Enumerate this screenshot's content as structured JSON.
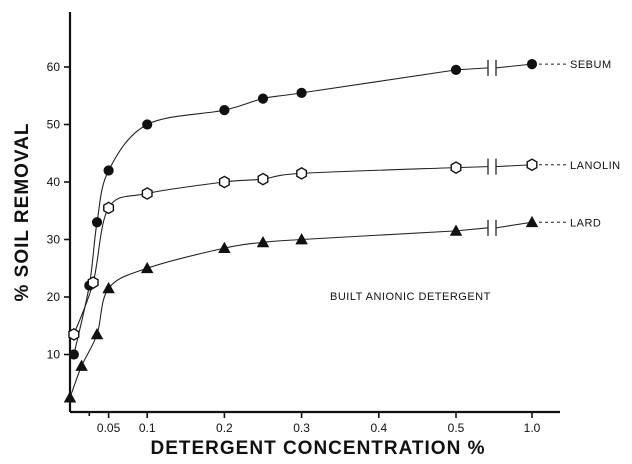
{
  "chart_data": {
    "type": "scatter",
    "title": "",
    "xlabel": "DETERGENT CONCENTRATION %",
    "ylabel": "% SOIL REMOVAL",
    "ylim": [
      0,
      70
    ],
    "y_ticks": [
      10,
      20,
      30,
      40,
      50,
      60
    ],
    "x_tick_labels": [
      "0.05",
      "0.1",
      "0.2",
      "0.3",
      "0.4",
      "0.5",
      "1.0"
    ],
    "x_scale_note": "linear 0 to 0.5, axis break, then 1.0",
    "annotation": "BUILT ANIONIC DETERGENT",
    "series": [
      {
        "name": "SEBUM",
        "marker": "filled-circle",
        "points": [
          [
            0.005,
            10
          ],
          [
            0.025,
            22
          ],
          [
            0.035,
            33
          ],
          [
            0.05,
            42
          ],
          [
            0.1,
            50
          ],
          [
            0.2,
            52.5
          ],
          [
            0.25,
            54.5
          ],
          [
            0.3,
            55.5
          ],
          [
            0.5,
            59.5
          ],
          [
            1.0,
            60.5
          ]
        ]
      },
      {
        "name": "LANOLIN",
        "marker": "open-hexagon",
        "points": [
          [
            0.005,
            13.5
          ],
          [
            0.03,
            22.5
          ],
          [
            0.05,
            35.5
          ],
          [
            0.1,
            38
          ],
          [
            0.2,
            40
          ],
          [
            0.25,
            40.5
          ],
          [
            0.3,
            41.5
          ],
          [
            0.5,
            42.5
          ],
          [
            1.0,
            43
          ]
        ]
      },
      {
        "name": "LARD",
        "marker": "filled-triangle",
        "points": [
          [
            0.0,
            2.5
          ],
          [
            0.015,
            8
          ],
          [
            0.035,
            13.5
          ],
          [
            0.05,
            21.5
          ],
          [
            0.1,
            25
          ],
          [
            0.2,
            28.5
          ],
          [
            0.25,
            29.5
          ],
          [
            0.3,
            30
          ],
          [
            0.5,
            31.5
          ],
          [
            1.0,
            33
          ]
        ]
      }
    ],
    "colors": {
      "ink": "#111111",
      "background": "#ffffff"
    }
  }
}
